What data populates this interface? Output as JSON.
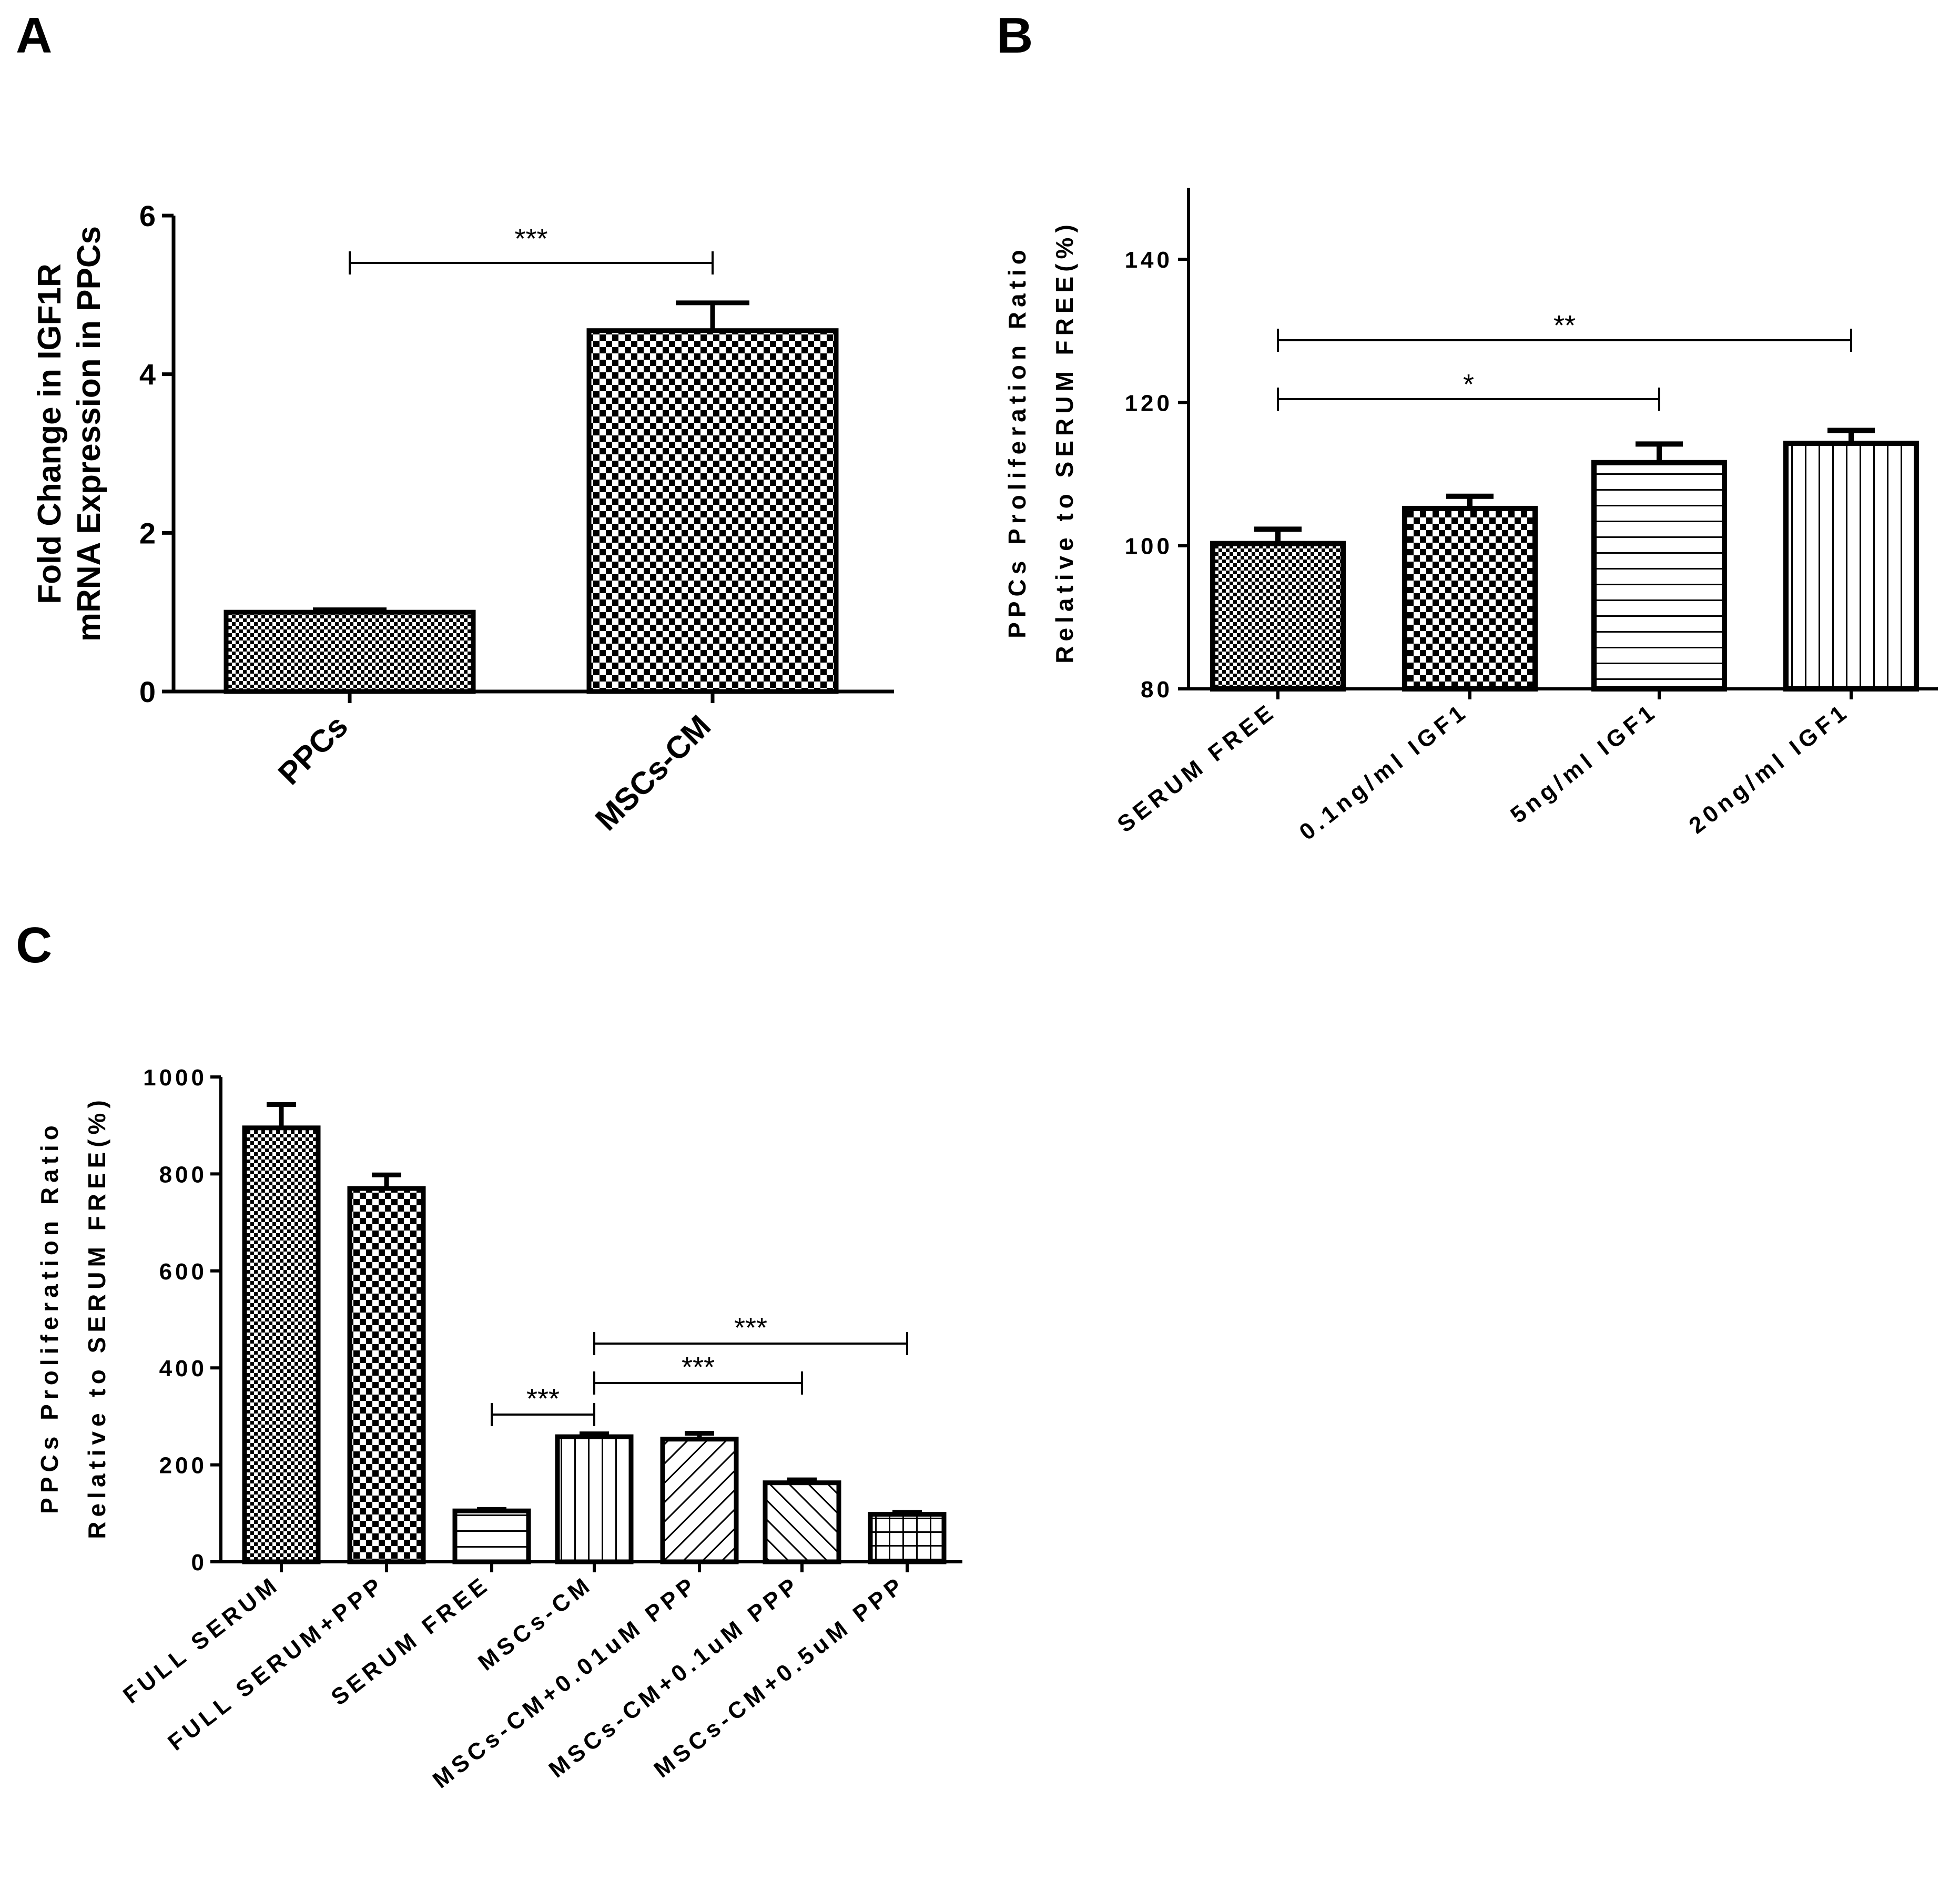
{
  "colors": {
    "ink": "#000000",
    "background": "#ffffff"
  },
  "chart_data": [
    {
      "panel": "A",
      "type": "bar",
      "title": "",
      "xlabel": "",
      "ylabel": [
        "Fold Change in IGF1R",
        "mRNA Expression in PPCs"
      ],
      "ylim": [
        0,
        6
      ],
      "yticks": [
        0,
        2,
        4,
        6
      ],
      "categories": [
        "PPCs",
        "MSCs-CM"
      ],
      "values": [
        1.0,
        4.55
      ],
      "errors": [
        0.03,
        0.35
      ],
      "patterns": [
        "fine-check",
        "check"
      ],
      "significance": [
        {
          "from": 0,
          "to": 1,
          "label": "***"
        }
      ]
    },
    {
      "panel": "B",
      "type": "bar",
      "title": "",
      "xlabel": "",
      "ylabel": [
        "PPCs Proliferation Ratio",
        "Relative to SERUM FREE(%)"
      ],
      "ylim": [
        80,
        150
      ],
      "yticks": [
        80,
        100,
        120,
        140
      ],
      "categories": [
        "SERUM FREE",
        "0.1ng/ml IGF1",
        "5ng/ml IGF1",
        "20ng/ml IGF1"
      ],
      "values": [
        100.3,
        105.2,
        111.6,
        114.3
      ],
      "errors": [
        2.0,
        1.7,
        2.6,
        1.8
      ],
      "patterns": [
        "fine-check",
        "check",
        "hlines",
        "vlines"
      ],
      "significance": [
        {
          "from": 0,
          "to": 2,
          "label": "*"
        },
        {
          "from": 0,
          "to": 3,
          "label": "**"
        }
      ]
    },
    {
      "panel": "C",
      "type": "bar",
      "title": "",
      "xlabel": "",
      "ylabel": [
        "PPCs Proliferation Ratio",
        "Relative to SERUM FREE(%)"
      ],
      "ylim": [
        0,
        1000
      ],
      "yticks": [
        0,
        200,
        400,
        600,
        800,
        1000
      ],
      "categories": [
        "FULL SERUM",
        "FULL SERUM+PPP",
        "SERUM FREE",
        "MSCs-CM",
        "MSCs-CM+0.01uM PPP",
        "MSCs-CM+0.1uM PPP",
        "MSCs-CM+0.5uM PPP"
      ],
      "values": [
        895,
        770,
        105,
        258,
        253,
        163,
        98
      ],
      "errors": [
        48,
        28,
        3,
        6,
        12,
        6,
        4
      ],
      "patterns": [
        "fine-check",
        "check",
        "hlines",
        "vlines",
        "diag-up",
        "diag-down",
        "grid"
      ],
      "significance": [
        {
          "from": 2,
          "to": 3,
          "label": "***"
        },
        {
          "from": 3,
          "to": 5,
          "label": "***"
        },
        {
          "from": 3,
          "to": 6,
          "label": "***"
        }
      ]
    }
  ]
}
